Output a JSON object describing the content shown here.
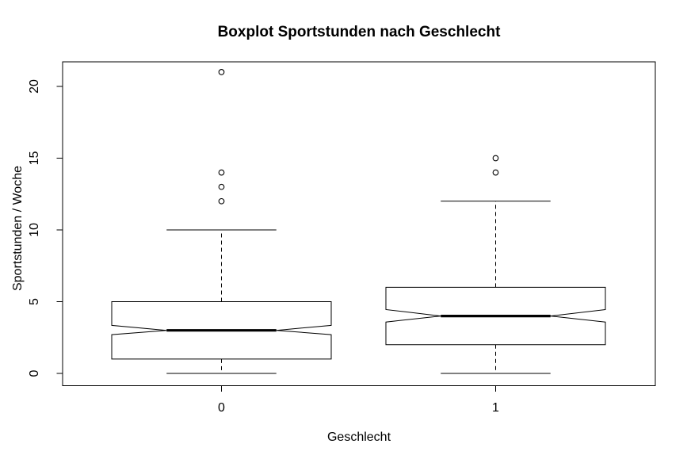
{
  "figure": {
    "background": "#ffffff"
  },
  "chart_data": {
    "type": "boxplot",
    "title": "Boxplot Sportstunden nach Geschlecht",
    "xlabel": "Geschlecht",
    "ylabel": "Sportstunden / Woche",
    "categories": [
      "0",
      "1"
    ],
    "yticks": [
      0,
      5,
      10,
      15,
      20
    ],
    "ylim": [
      -0.85,
      21.7
    ],
    "notched": true,
    "grid": false,
    "colors": {
      "stroke": "#000000",
      "box_fill": "#ffffff",
      "background": "#ffffff"
    },
    "groups": [
      {
        "category": "0",
        "lower_whisker": 0,
        "q1": 1,
        "median": 3,
        "q3": 5,
        "upper_whisker": 10,
        "notch_low": 2.7,
        "notch_high": 3.35,
        "outliers": [
          12,
          13,
          14,
          21
        ]
      },
      {
        "category": "1",
        "lower_whisker": 0,
        "q1": 2,
        "median": 4,
        "q3": 6,
        "upper_whisker": 12,
        "notch_low": 3.58,
        "notch_high": 4.45,
        "outliers": [
          14,
          15
        ]
      }
    ]
  }
}
